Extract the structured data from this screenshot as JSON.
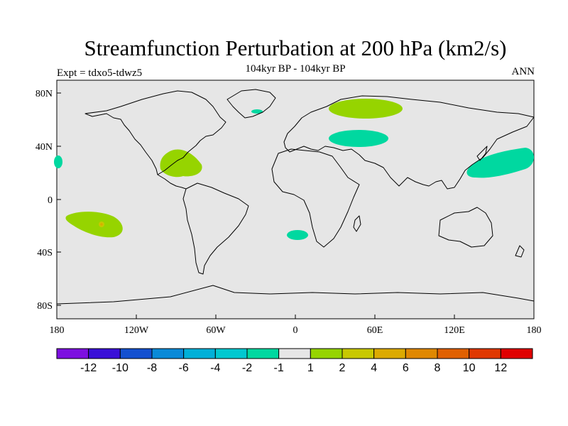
{
  "header": {
    "title": "Streamfunction Perturbation at 200 hPa (km2/s)",
    "subtitle": "104kyr BP - 104kyr BP",
    "left_label": "Expt = tdxo5-tdwz5",
    "right_label": "ANN"
  },
  "axes": {
    "y_ticks": [
      "80N",
      "40N",
      "0",
      "40S",
      "80S"
    ],
    "x_ticks": [
      "180",
      "120W",
      "60W",
      "0",
      "60E",
      "120E",
      "180"
    ]
  },
  "colorbar": {
    "colors": [
      "#7d10e0",
      "#3a10d8",
      "#1450d0",
      "#0a8ad8",
      "#00b0d8",
      "#00c8d0",
      "#00d8a0",
      "#e6e6e6",
      "#96d400",
      "#c8c800",
      "#dcaa00",
      "#e08800",
      "#e06000",
      "#e03800",
      "#e00000"
    ],
    "labels": [
      "-12",
      "-10",
      "-8",
      "-6",
      "-4",
      "-2",
      "-1",
      "1",
      "2",
      "4",
      "6",
      "8",
      "10",
      "12"
    ]
  },
  "colors": {
    "background": "#e6e6e6",
    "negative": "#00d8a0",
    "positive": "#96d400",
    "peak": "#c8c800",
    "max": "#dcaa00"
  }
}
